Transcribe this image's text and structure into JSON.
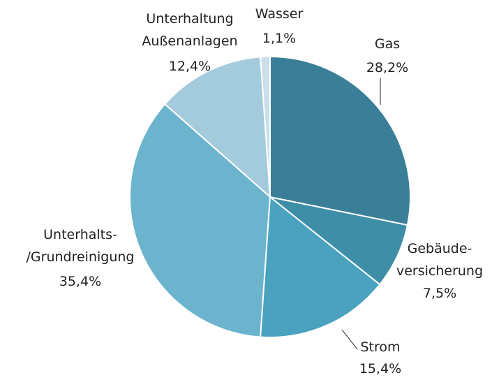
{
  "chart_data": {
    "type": "pie",
    "categories": [
      "Gas",
      "Gebäude-\nversicherung",
      "Strom",
      "Unterhalts-\n/Grundreinigung",
      "Unterhaltung\nAußenanlagen",
      "Wasser"
    ],
    "values": [
      28.2,
      7.5,
      15.4,
      35.4,
      12.4,
      1.1
    ],
    "value_labels": [
      "28,2%",
      "7,5%",
      "15,4%",
      "35,4%",
      "12,4%",
      "1,1%"
    ],
    "colors": [
      "#3a7f97",
      "#3f8ea8",
      "#4aa2bf",
      "#6cb4cd",
      "#a4cbdc",
      "#cadfe9"
    ]
  }
}
